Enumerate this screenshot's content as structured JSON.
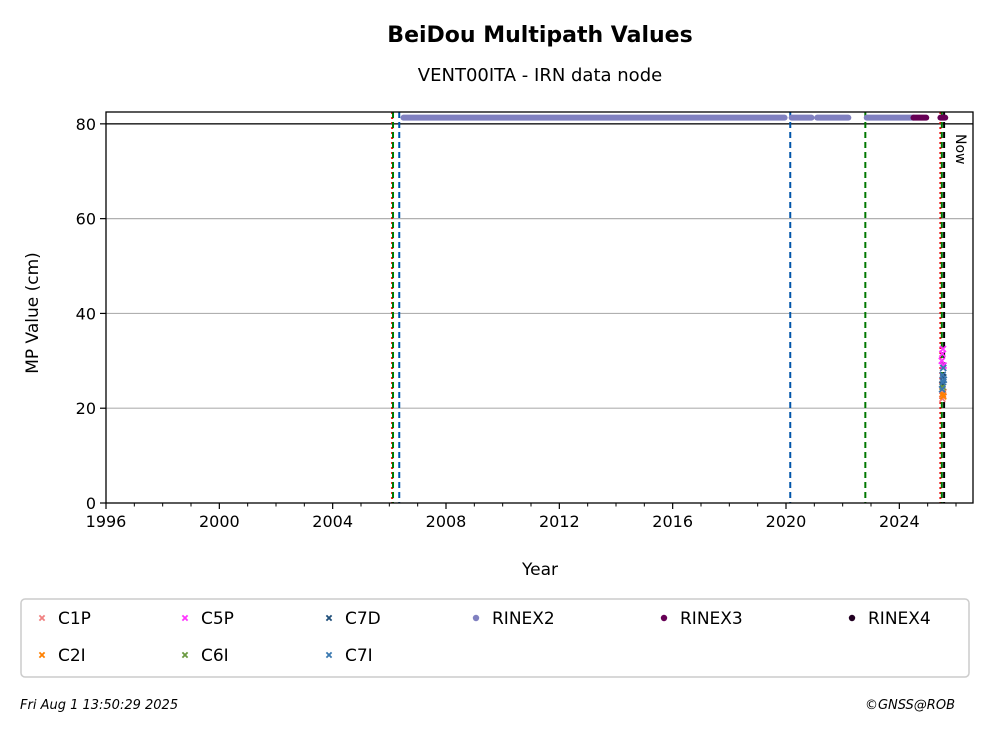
{
  "chart_data": {
    "type": "scatter",
    "title": "BeiDou Multipath Values",
    "subtitle": "VENT00ITA - IRN data node",
    "xlabel": "Year",
    "ylabel": "MP Value (cm)",
    "xlim": [
      1996,
      2026.6
    ],
    "ylim": [
      0,
      82.5
    ],
    "x_ticks": [
      1996,
      2000,
      2004,
      2008,
      2012,
      2016,
      2020,
      2024
    ],
    "y_ticks": [
      0,
      20,
      40,
      60,
      80
    ],
    "grid": "horizontal",
    "ref_line_y": 80,
    "vlines": [
      {
        "x": 2006.1,
        "color": "#ee0000",
        "style": "dotted"
      },
      {
        "x": 2006.13,
        "color": "#007700",
        "style": "dashed"
      },
      {
        "x": 2006.35,
        "color": "#0055aa",
        "style": "dashed"
      },
      {
        "x": 2020.15,
        "color": "#0055aa",
        "style": "dashed"
      },
      {
        "x": 2022.8,
        "color": "#007700",
        "style": "dashed"
      },
      {
        "x": 2025.45,
        "color": "#ee0000",
        "style": "dotted"
      },
      {
        "x": 2025.5,
        "color": "#007700",
        "style": "dashed"
      },
      {
        "x": 2025.58,
        "color": "#000000",
        "style": "dashed"
      }
    ],
    "now_x": 2025.58,
    "now_label": "Now",
    "legend_position": "bottom",
    "series": [
      {
        "name": "C1P",
        "marker": "x",
        "color": "#f08080",
        "points": [
          [
            2025.52,
            22.0
          ],
          [
            2025.54,
            22.8
          ],
          [
            2025.56,
            23.4
          ]
        ]
      },
      {
        "name": "C5P",
        "marker": "x",
        "color": "#ff33ff",
        "points": [
          [
            2025.5,
            30.0
          ],
          [
            2025.52,
            31.5
          ],
          [
            2025.54,
            32.5
          ],
          [
            2025.56,
            29.0
          ]
        ]
      },
      {
        "name": "C7D",
        "marker": "x",
        "color": "#1f4e79",
        "points": [
          [
            2025.52,
            25.0
          ],
          [
            2025.55,
            26.5
          ]
        ]
      },
      {
        "name": "RINEX2",
        "marker": "dot",
        "color": "#8080c0",
        "segments": [
          [
            2006.5,
            2019.95
          ],
          [
            2020.2,
            2020.9
          ],
          [
            2021.1,
            2022.2
          ],
          [
            2022.85,
            2024.5
          ]
        ],
        "y": 81.3
      },
      {
        "name": "RINEX3",
        "marker": "dot",
        "color": "#660055",
        "segments": [
          [
            2024.5,
            2024.95
          ],
          [
            2025.45,
            2025.62
          ]
        ],
        "y": 81.3
      },
      {
        "name": "RINEX4",
        "marker": "dot",
        "color": "#220022",
        "segments": [],
        "y": 81.3
      },
      {
        "name": "C2I",
        "marker": "x",
        "color": "#ff8000",
        "points": [
          [
            2025.53,
            23.0
          ],
          [
            2025.55,
            22.5
          ]
        ]
      },
      {
        "name": "C6I",
        "marker": "x",
        "color": "#6a9a40",
        "points": [
          [
            2025.53,
            24.5
          ]
        ]
      },
      {
        "name": "C7I",
        "marker": "x",
        "color": "#3a78b0",
        "points": [
          [
            2025.51,
            24.0
          ],
          [
            2025.53,
            27.0
          ],
          [
            2025.55,
            28.5
          ],
          [
            2025.57,
            26.0
          ],
          [
            2025.54,
            25.5
          ]
        ]
      }
    ]
  },
  "footer": {
    "timestamp": "Fri Aug  1 13:50:29 2025",
    "credit": "©GNSS@ROB"
  }
}
